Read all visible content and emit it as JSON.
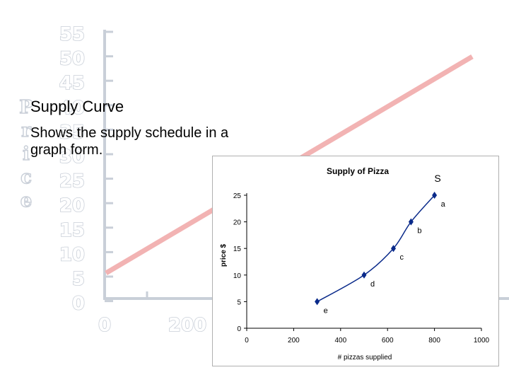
{
  "slide": {
    "title": "Supply Curve",
    "body": "Shows the supply schedule in a graph form."
  },
  "background_chart": {
    "y_axis_letters": [
      "P",
      "r",
      "i",
      "c",
      "e"
    ],
    "y_ticks": [
      "55",
      "50",
      "45",
      "40",
      "35",
      "30",
      "25",
      "20",
      "15",
      "10",
      "5",
      "0"
    ],
    "x_ticks": [
      "0",
      "200"
    ],
    "line_color": "#f2b3b3",
    "axis_color": "#c9cfd8"
  },
  "chart_data": {
    "type": "line",
    "title": "Supply of Pizza",
    "xlabel": "# pizzas supplied",
    "ylabel": "price $",
    "xlim": [
      0,
      1000
    ],
    "ylim": [
      0,
      25
    ],
    "x_ticks": [
      0,
      200,
      400,
      600,
      800,
      1000
    ],
    "y_ticks": [
      0,
      5,
      10,
      15,
      20,
      25
    ],
    "grid": false,
    "series": [
      {
        "name": "S",
        "color": "#0a2a8a",
        "points": [
          {
            "x": 300,
            "y": 5,
            "label": "e"
          },
          {
            "x": 500,
            "y": 10,
            "label": "d"
          },
          {
            "x": 625,
            "y": 15,
            "label": "c"
          },
          {
            "x": 700,
            "y": 20,
            "label": "b"
          },
          {
            "x": 800,
            "y": 25,
            "label": "a"
          }
        ]
      }
    ]
  }
}
